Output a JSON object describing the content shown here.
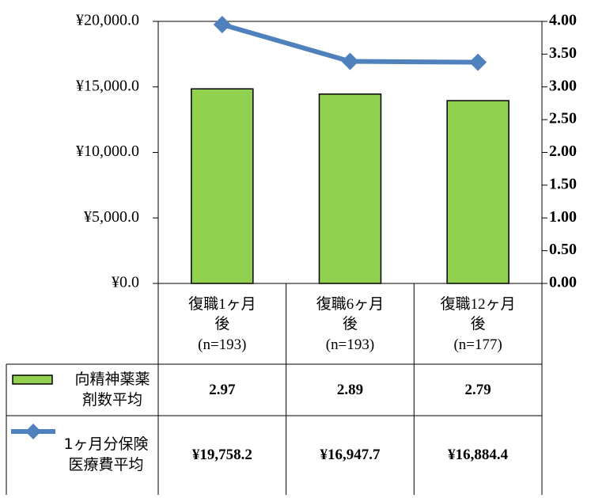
{
  "chart_data": {
    "type": "bar_line",
    "categories": [
      "復職1ヶ月後\n(n=193)",
      "復職6ヶ月後\n(n=193)",
      "復職12ヶ月後\n(n=177)"
    ],
    "series": [
      {
        "name": "向精神薬薬剤数平均",
        "type": "bar",
        "axis": "y2",
        "color": "#92d050",
        "values": [
          2.97,
          2.89,
          2.79
        ]
      },
      {
        "name": "1ヶ月分保険医療費平均",
        "type": "line",
        "axis": "y",
        "color": "#4f81bd",
        "values": [
          19758.2,
          16947.7,
          16884.4
        ],
        "value_labels": [
          "¥19,758.2",
          "¥16,947.7",
          "¥16,884.4"
        ]
      }
    ],
    "ylim": [
      0,
      20000
    ],
    "yticks": [
      {
        "value": 0,
        "label": "¥0.0"
      },
      {
        "value": 5000,
        "label": "¥5,000.0"
      },
      {
        "value": 10000,
        "label": "¥10,000.0"
      },
      {
        "value": 15000,
        "label": "¥15,000.0"
      },
      {
        "value": 20000,
        "label": "¥20,000.0"
      }
    ],
    "y2lim": [
      0,
      4
    ],
    "y2ticks": [
      {
        "value": 0,
        "label": "0.00"
      },
      {
        "value": 0.5,
        "label": "0.50"
      },
      {
        "value": 1,
        "label": "1.00"
      },
      {
        "value": 1.5,
        "label": "1.50"
      },
      {
        "value": 2,
        "label": "2.00"
      },
      {
        "value": 2.5,
        "label": "2.50"
      },
      {
        "value": 3,
        "label": "3.00"
      },
      {
        "value": 3.5,
        "label": "3.50"
      },
      {
        "value": 4,
        "label": "4.00"
      }
    ]
  }
}
